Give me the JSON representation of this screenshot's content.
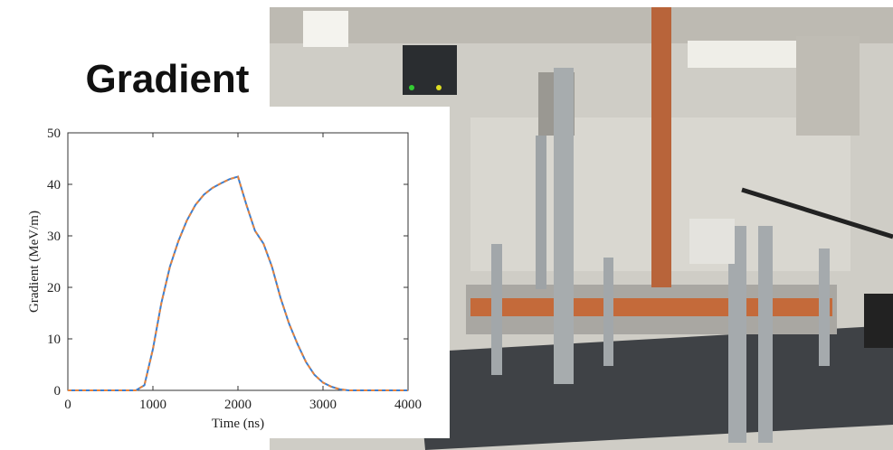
{
  "chart_data": {
    "type": "line",
    "title": "Gradient",
    "x_label": "Time (ns)",
    "y_label": "Gradient (MeV/m)",
    "x": [
      0,
      800,
      900,
      1000,
      1100,
      1200,
      1300,
      1400,
      1500,
      1600,
      1700,
      1800,
      1900,
      2000,
      2100,
      2200,
      2300,
      2400,
      2500,
      2600,
      2700,
      2800,
      2900,
      3000,
      3100,
      3200,
      3300,
      4000
    ],
    "series": [
      {
        "color": "#3b7fd1",
        "dash_color": "#e8833a",
        "values": [
          0,
          0,
          1,
          8,
          17,
          24,
          29,
          33,
          36,
          38,
          39.3,
          40.2,
          41,
          41.5,
          36,
          31,
          28.5,
          24,
          18,
          13,
          9,
          5.5,
          3,
          1.5,
          0.7,
          0.2,
          0,
          0
        ]
      }
    ],
    "xlim": [
      0,
      4000
    ],
    "xticks": [
      0,
      1000,
      2000,
      3000,
      4000
    ],
    "ylim": [
      0,
      50
    ],
    "yticks": [
      0,
      10,
      20,
      30,
      40,
      50
    ]
  }
}
